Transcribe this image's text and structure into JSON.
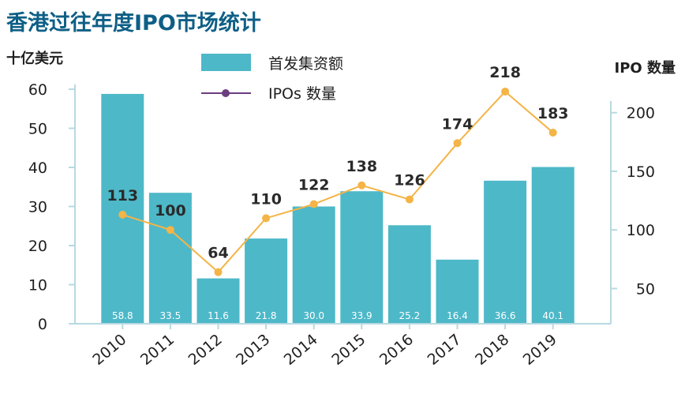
{
  "title": "香港过往年度IPO市场统计",
  "colors": {
    "bar": "#4db8c8",
    "line": "#f4b446",
    "marker": "#f4b446",
    "legend_marker": "#6b3d7e",
    "axis": "#b7d9e2",
    "title": "#0e5f86"
  },
  "legend": {
    "bar_label": "首发集资额",
    "line_label": "IPOs 数量"
  },
  "chart_data": {
    "type": "bar",
    "title": "香港过往年度IPO市场统计",
    "categories": [
      "2010",
      "2011",
      "2012",
      "2013",
      "2014",
      "2015",
      "2016",
      "2017",
      "2018",
      "2019"
    ],
    "series": [
      {
        "name": "首发集资额",
        "type": "bar",
        "axis": "left",
        "values": [
          58.8,
          33.5,
          11.6,
          21.8,
          30.0,
          33.9,
          25.2,
          16.4,
          36.6,
          40.1
        ],
        "labels": [
          "58.8",
          "33.5",
          "11.6",
          "21.8",
          "30.0",
          "33.9",
          "25.2",
          "16.4",
          "36.6",
          "40.1"
        ]
      },
      {
        "name": "IPOs 数量",
        "type": "line",
        "axis": "right",
        "values": [
          113,
          100,
          64,
          110,
          122,
          138,
          126,
          174,
          218,
          183
        ],
        "labels": [
          "113",
          "100",
          "64",
          "110",
          "122",
          "138",
          "126",
          "174",
          "218",
          "183"
        ]
      }
    ],
    "y_left": {
      "label": "十亿美元",
      "min": 0,
      "max": 60,
      "ticks": [
        "0",
        "10",
        "20",
        "30",
        "40",
        "50",
        "60"
      ]
    },
    "y_right": {
      "label": "IPO 数量",
      "min": 20,
      "max": 220,
      "ticks": [
        "50",
        "100",
        "150",
        "200"
      ]
    },
    "legend_position": "top-center",
    "grid": false
  }
}
